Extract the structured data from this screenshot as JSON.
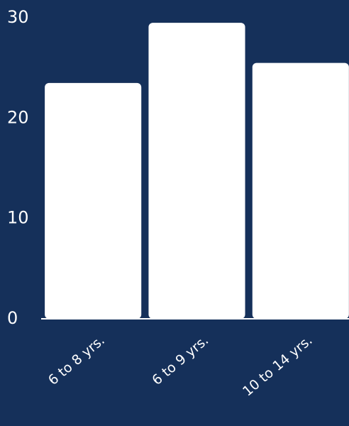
{
  "chart_data": {
    "type": "bar",
    "categories": [
      "6 to 8 yrs.",
      "6 to 9 yrs.",
      "10 to 14 yrs."
    ],
    "values": [
      23.5,
      29.5,
      25.5
    ],
    "color": "#ffffff",
    "ylim": [
      0,
      30
    ],
    "yticks": [
      0,
      10,
      20,
      30
    ],
    "grid": false
  }
}
